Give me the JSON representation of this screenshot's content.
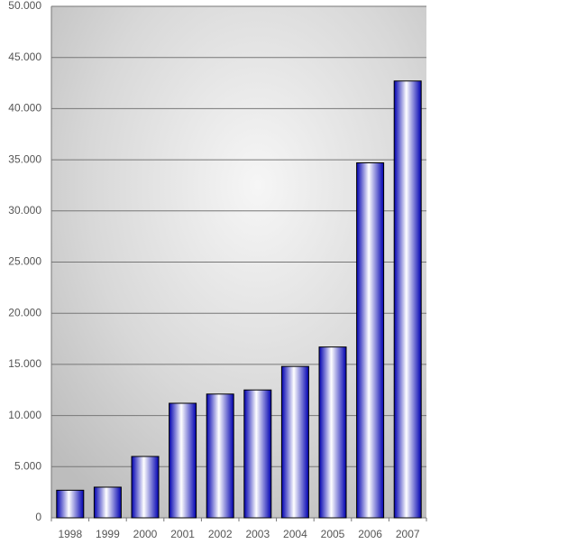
{
  "chart_data": {
    "type": "bar",
    "categories": [
      "1998",
      "1999",
      "2000",
      "2001",
      "2002",
      "2003",
      "2004",
      "2005",
      "2006",
      "2007"
    ],
    "values": [
      2700,
      3000,
      6000,
      11200,
      12100,
      12500,
      14800,
      16700,
      34700,
      42700
    ],
    "color": "#0000b0",
    "ylim": [
      0,
      50000
    ],
    "yticks": [
      0,
      {
        "value": 5000,
        "label": "5.000"
      },
      {
        "value": 10000,
        "label": "10.000"
      },
      {
        "value": 15000,
        "label": "15.000"
      },
      {
        "value": 20000,
        "label": "20.000"
      },
      {
        "value": 25000,
        "label": "25.000"
      },
      {
        "value": 30000,
        "label": "30.000"
      },
      {
        "value": 35000,
        "label": "35.000"
      },
      {
        "value": 40000,
        "label": "40.000"
      },
      {
        "value": 45000,
        "label": "45.000"
      },
      {
        "value": 50000,
        "label": "50.000"
      }
    ],
    "grid": true
  }
}
